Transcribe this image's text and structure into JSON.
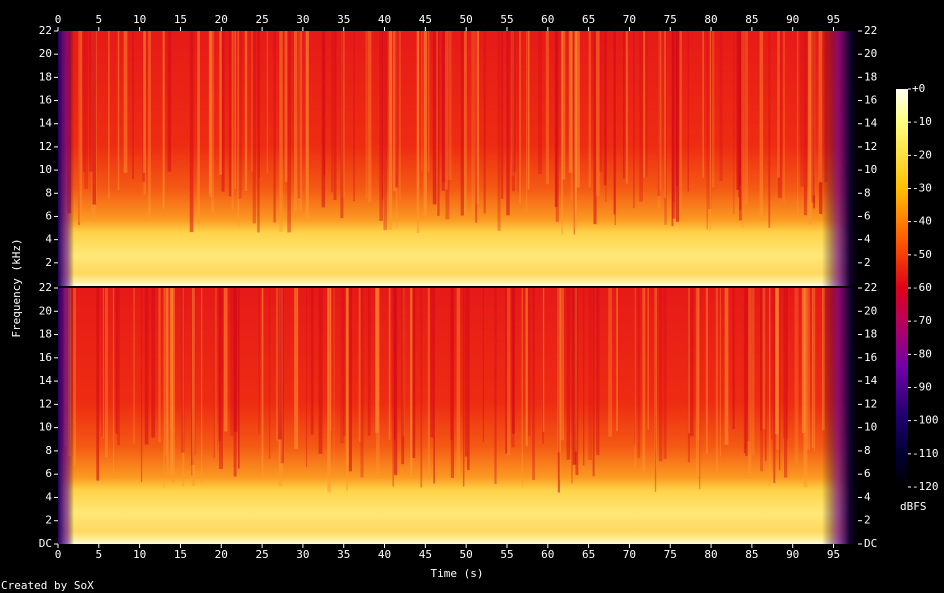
{
  "chart_data": {
    "type": "spectrogram",
    "x_label": "Time (s)",
    "y_label": "Frequency (kHz)",
    "xlim": [
      0,
      98
    ],
    "xticks": [
      0,
      5,
      10,
      15,
      20,
      25,
      30,
      35,
      40,
      45,
      50,
      55,
      60,
      65,
      70,
      75,
      80,
      85,
      90,
      95
    ],
    "channels": [
      {
        "ylim": [
          0,
          22
        ],
        "yticks": [
          2,
          4,
          6,
          8,
          10,
          12,
          14,
          16,
          18,
          20,
          22
        ]
      },
      {
        "ylim": [
          0,
          22
        ],
        "yticks": [
          {
            "value": 0,
            "label": "DC"
          },
          2,
          4,
          6,
          8,
          10,
          12,
          14,
          16,
          18,
          20,
          22
        ]
      }
    ],
    "colorbar": {
      "label": "dBFS",
      "lim": [
        -120,
        0
      ],
      "ticks": [
        {
          "value": 0,
          "label": "+0"
        },
        -10,
        -20,
        -30,
        -40,
        -50,
        -60,
        -70,
        -80,
        -90,
        -100,
        -110,
        -120
      ]
    },
    "footer": "Created by SoX"
  }
}
